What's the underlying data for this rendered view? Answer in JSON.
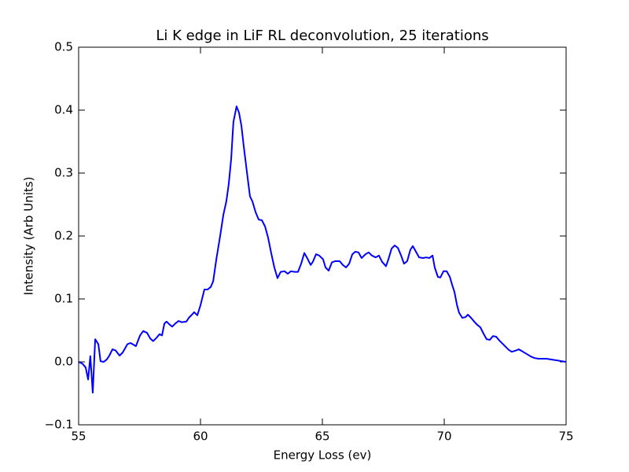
{
  "chart_data": {
    "type": "line",
    "title": "Li K edge in LiF RL deconvolution, 25 iterations",
    "xlabel": "Energy Loss (ev)",
    "ylabel": "Intensity (Arb Units)",
    "xlim": [
      55,
      75
    ],
    "xticks": [
      55,
      60,
      65,
      70,
      75
    ],
    "ylim": [
      -0.1,
      0.5
    ],
    "yticks": [
      {
        "value": -0.1,
        "label": "−0.1"
      },
      {
        "value": 0,
        "label": "0.0"
      },
      {
        "value": 0.1,
        "label": "0.1"
      },
      {
        "value": 0.2,
        "label": "0.2"
      },
      {
        "value": 0.3,
        "label": "0.3"
      },
      {
        "value": 0.4,
        "label": "0.4"
      },
      {
        "value": 0.5,
        "label": "0.5"
      }
    ],
    "grid": false,
    "series": [
      {
        "color": "#0000ff",
        "x": [
          55.0,
          55.16,
          55.29,
          55.39,
          55.48,
          55.58,
          55.68,
          55.81,
          55.9,
          56.03,
          56.16,
          56.26,
          56.39,
          56.52,
          56.68,
          56.81,
          57.0,
          57.13,
          57.35,
          57.52,
          57.65,
          57.81,
          57.94,
          58.06,
          58.19,
          58.32,
          58.42,
          58.52,
          58.61,
          58.74,
          58.84,
          58.97,
          59.1,
          59.23,
          59.42,
          59.52,
          59.65,
          59.74,
          59.87,
          60.0,
          60.16,
          60.29,
          60.42,
          60.52,
          60.65,
          60.81,
          60.94,
          61.06,
          61.16,
          61.26,
          61.35,
          61.48,
          61.58,
          61.68,
          61.77,
          61.9,
          62.03,
          62.13,
          62.26,
          62.39,
          62.52,
          62.65,
          62.77,
          62.9,
          63.03,
          63.16,
          63.29,
          63.45,
          63.58,
          63.71,
          63.87,
          64.0,
          64.13,
          64.26,
          64.39,
          64.52,
          64.61,
          64.74,
          64.87,
          65.03,
          65.13,
          65.26,
          65.39,
          65.52,
          65.71,
          65.84,
          65.97,
          66.1,
          66.23,
          66.35,
          66.48,
          66.61,
          66.77,
          66.9,
          67.03,
          67.19,
          67.32,
          67.45,
          67.61,
          67.71,
          67.84,
          67.97,
          68.1,
          68.23,
          68.35,
          68.48,
          68.61,
          68.71,
          68.84,
          68.97,
          69.13,
          69.26,
          69.39,
          69.52,
          69.61,
          69.74,
          69.84,
          69.97,
          70.1,
          70.23,
          70.32,
          70.42,
          70.52,
          70.61,
          70.74,
          70.87,
          70.97,
          71.1,
          71.23,
          71.35,
          71.48,
          71.61,
          71.74,
          71.87,
          72.0,
          72.13,
          72.26,
          72.39,
          72.52,
          72.65,
          72.77,
          72.94,
          73.06,
          73.19,
          73.32,
          73.45,
          73.58,
          73.71,
          73.87,
          74.19,
          74.52,
          74.84,
          75.0
        ],
        "values": [
          0.0,
          -0.003,
          -0.009,
          -0.028,
          0.009,
          -0.049,
          0.036,
          0.028,
          0.001,
          0.0,
          0.004,
          0.01,
          0.02,
          0.018,
          0.01,
          0.015,
          0.028,
          0.03,
          0.025,
          0.042,
          0.049,
          0.046,
          0.037,
          0.033,
          0.038,
          0.044,
          0.042,
          0.061,
          0.064,
          0.059,
          0.056,
          0.061,
          0.065,
          0.063,
          0.064,
          0.07,
          0.075,
          0.079,
          0.074,
          0.09,
          0.115,
          0.115,
          0.119,
          0.128,
          0.163,
          0.201,
          0.234,
          0.255,
          0.283,
          0.323,
          0.381,
          0.406,
          0.396,
          0.375,
          0.344,
          0.303,
          0.263,
          0.255,
          0.238,
          0.226,
          0.225,
          0.215,
          0.198,
          0.173,
          0.15,
          0.133,
          0.143,
          0.144,
          0.14,
          0.144,
          0.143,
          0.143,
          0.156,
          0.173,
          0.164,
          0.154,
          0.159,
          0.171,
          0.169,
          0.163,
          0.15,
          0.145,
          0.158,
          0.16,
          0.16,
          0.154,
          0.15,
          0.156,
          0.171,
          0.175,
          0.174,
          0.165,
          0.171,
          0.174,
          0.169,
          0.166,
          0.169,
          0.159,
          0.152,
          0.163,
          0.18,
          0.185,
          0.181,
          0.169,
          0.156,
          0.16,
          0.178,
          0.184,
          0.175,
          0.166,
          0.165,
          0.166,
          0.165,
          0.169,
          0.15,
          0.135,
          0.134,
          0.144,
          0.144,
          0.135,
          0.123,
          0.111,
          0.091,
          0.078,
          0.07,
          0.071,
          0.075,
          0.07,
          0.064,
          0.059,
          0.055,
          0.045,
          0.036,
          0.035,
          0.041,
          0.04,
          0.034,
          0.029,
          0.024,
          0.019,
          0.016,
          0.018,
          0.02,
          0.017,
          0.014,
          0.011,
          0.008,
          0.006,
          0.005,
          0.005,
          0.003,
          0.001,
          0.0
        ]
      }
    ]
  }
}
